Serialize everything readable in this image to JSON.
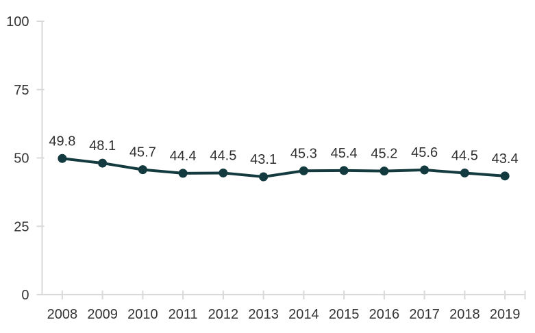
{
  "chart_data": {
    "type": "line",
    "title": "",
    "xlabel": "",
    "ylabel": "",
    "categories": [
      "2008",
      "2009",
      "2010",
      "2011",
      "2012",
      "2013",
      "2014",
      "2015",
      "2016",
      "2017",
      "2018",
      "2019"
    ],
    "series": [
      {
        "name": "value",
        "values": [
          49.8,
          48.1,
          45.7,
          44.4,
          44.5,
          43.1,
          45.3,
          45.4,
          45.2,
          45.6,
          44.5,
          43.4
        ]
      }
    ],
    "data_labels": [
      "49.8",
      "48.1",
      "45.7",
      "44.4",
      "44.5",
      "43.1",
      "45.3",
      "45.4",
      "45.2",
      "45.6",
      "44.5",
      "43.4"
    ],
    "ylim": [
      0,
      100
    ],
    "yticks": [
      0,
      25,
      50,
      75,
      100
    ],
    "grid": false,
    "legend": false,
    "colors": {
      "line": "#133A3E",
      "marker": "#133A3E",
      "data_label": "#303030",
      "axis": "#D9D9D9",
      "tick_label": "#333333",
      "background": "#FFFFFF"
    }
  }
}
